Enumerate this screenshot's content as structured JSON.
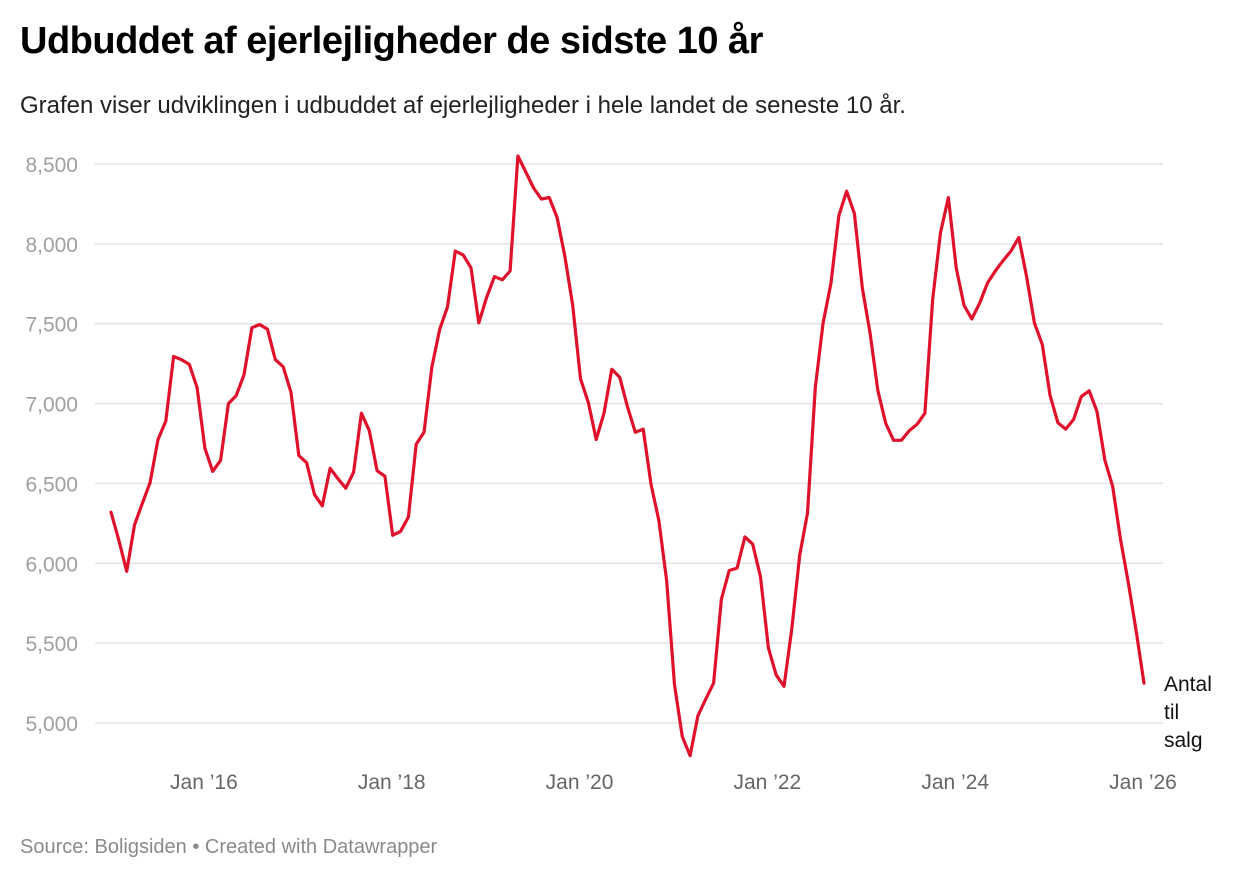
{
  "header": {
    "title": "Udbuddet af ejerlejligheder de sidste 10 år",
    "subtitle": "Grafen viser udviklingen i udbuddet af ejerlejligheder i hele landet de seneste 10 år."
  },
  "footer": {
    "source": "Source: Boligsiden • Created with Datawrapper"
  },
  "colors": {
    "line": "#e0112b",
    "grid": "#e2e2e2"
  },
  "chart_data": {
    "type": "line",
    "title": "Udbuddet af ejerlejligheder de sidste 10 år",
    "subtitle": "Grafen viser udviklingen i udbuddet af ejerlejligheder i hele landet de seneste 10 år.",
    "xlabel": "",
    "ylabel": "",
    "grid": true,
    "x_start": "2015-01",
    "x_step": "month",
    "xlim": [
      "2015-01",
      "2026-01"
    ],
    "ylim": [
      4800,
      8600
    ],
    "y_ticks": [
      5000,
      5500,
      6000,
      6500,
      7000,
      7500,
      8000,
      8500
    ],
    "y_tick_labels": [
      "5,000",
      "5,500",
      "6,000",
      "6,500",
      "7,000",
      "7,500",
      "8,000",
      "8,500"
    ],
    "x_ticks": [
      {
        "label": "Jan ’16",
        "month_index": 12
      },
      {
        "label": "Jan ’18",
        "month_index": 36
      },
      {
        "label": "Jan ’20",
        "month_index": 60
      },
      {
        "label": "Jan ’22",
        "month_index": 84
      },
      {
        "label": "Jan ’24",
        "month_index": 108
      },
      {
        "label": "Jan ’26",
        "month_index": 132
      }
    ],
    "series": [
      {
        "name": "Antal til salg",
        "label_lines": [
          "Antal",
          "til",
          "salg"
        ],
        "values": [
          6320,
          6145,
          5950,
          6240,
          6375,
          6505,
          6775,
          6890,
          7295,
          7275,
          7245,
          7100,
          6720,
          6575,
          6645,
          7000,
          7050,
          7180,
          7475,
          7495,
          7465,
          7275,
          7230,
          7070,
          6675,
          6630,
          6430,
          6360,
          6595,
          6530,
          6470,
          6570,
          6940,
          6830,
          6580,
          6545,
          6175,
          6200,
          6290,
          6745,
          6820,
          7230,
          7465,
          7605,
          7955,
          7930,
          7850,
          7505,
          7665,
          7795,
          7775,
          7830,
          8550,
          8450,
          8350,
          8280,
          8290,
          8165,
          7920,
          7615,
          7155,
          7005,
          6775,
          6940,
          7215,
          7165,
          6980,
          6820,
          6840,
          6495,
          6270,
          5895,
          5240,
          4915,
          4795,
          5045,
          5150,
          5250,
          5775,
          5955,
          5970,
          6165,
          6120,
          5915,
          5470,
          5300,
          5230,
          5590,
          6050,
          6315,
          7100,
          7505,
          7755,
          8175,
          8330,
          8190,
          7725,
          7440,
          7080,
          6875,
          6770,
          6770,
          6830,
          6870,
          6940,
          7655,
          8070,
          8290,
          7850,
          7615,
          7530,
          7630,
          7755,
          7830,
          7895,
          7955,
          8040,
          7795,
          7505,
          7370,
          7050,
          6880,
          6840,
          6900,
          7045,
          7080,
          6950,
          6645,
          6480,
          6150,
          5880,
          5575,
          5250
        ]
      }
    ],
    "legend": "direct-label-end"
  }
}
